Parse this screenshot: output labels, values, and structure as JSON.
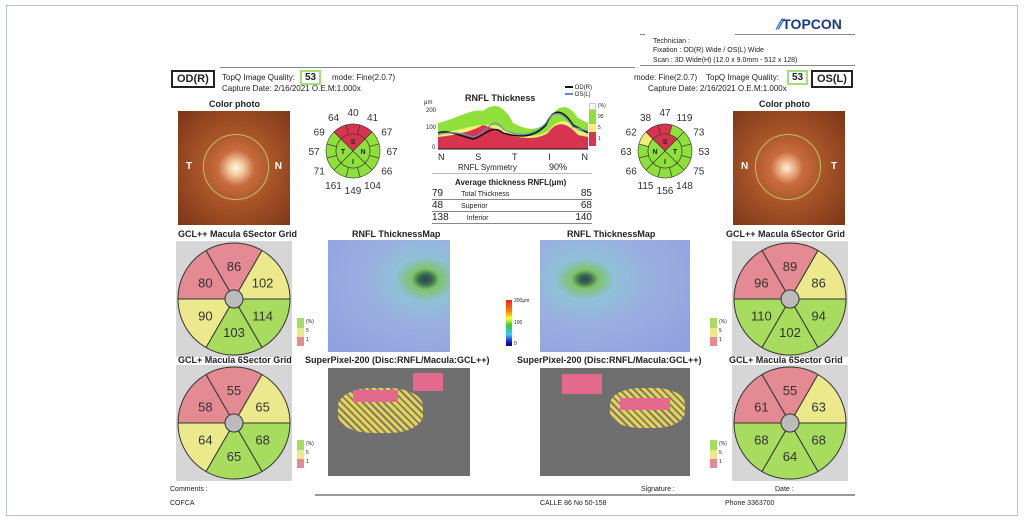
{
  "brand": "TOPCON",
  "header": {
    "technician": "Technician :",
    "fixation": "Fixation : OD(R) Wide / OS(L) Wide",
    "scan": "Scan : 3D Wide(H) (12.0 x 9.0mm - 512 x 128)"
  },
  "od": {
    "eye": "OD(R)",
    "quality_label": "TopQ Image Quality:",
    "quality": "53",
    "mode": "mode: Fine(2.0.7)",
    "capture": "Capture Date: 2/16/2021  O.E.M:1.000x",
    "photo_title": "Color photo",
    "photo_left": "T",
    "photo_right": "N",
    "clock": [
      "40",
      "41",
      "67",
      "67",
      "66",
      "104",
      "149",
      "161",
      "71",
      "57",
      "69",
      "64"
    ],
    "clock_colors": [
      "r",
      "r",
      "g",
      "g",
      "g",
      "g",
      "g",
      "g",
      "g",
      "g",
      "g",
      "r"
    ],
    "quad": [
      "S",
      "N",
      "I",
      "T"
    ],
    "quad_colors": [
      "r",
      "g",
      "g",
      "g"
    ],
    "gclpp": {
      "title": "GCL++ Macula 6Sector Grid",
      "sectors": [
        "86",
        "102",
        "114",
        "103",
        "90",
        "80"
      ],
      "colors": [
        "r",
        "y",
        "g",
        "g",
        "y",
        "r"
      ]
    },
    "gclp": {
      "title": "GCL+ Macula 6Sector Grid",
      "sectors": [
        "55",
        "65",
        "68",
        "65",
        "64",
        "58"
      ],
      "colors": [
        "r",
        "y",
        "g",
        "g",
        "y",
        "r"
      ]
    },
    "map_title": "RNFL ThicknessMap",
    "sp_title": "SuperPixel-200 (Disc:RNFL/Macula:GCL++)"
  },
  "os": {
    "eye": "OS(L)",
    "quality_label": "TopQ Image Quality:",
    "quality": "53",
    "mode": "mode: Fine(2.0.7)",
    "capture": "Capture Date: 2/16/2021  O.E.M:1.000x",
    "photo_title": "Color photo",
    "photo_left": "N",
    "photo_right": "T",
    "clock": [
      "47",
      "119",
      "73",
      "53",
      "75",
      "148",
      "156",
      "115",
      "66",
      "63",
      "62",
      "38"
    ],
    "clock_colors": [
      "r",
      "g",
      "g",
      "g",
      "g",
      "g",
      "g",
      "g",
      "g",
      "g",
      "y",
      "r"
    ],
    "quad": [
      "S",
      "T",
      "I",
      "N"
    ],
    "quad_colors": [
      "r",
      "g",
      "g",
      "g"
    ],
    "gclpp": {
      "title": "GCL++ Macula 6Sector Grid",
      "sectors": [
        "89",
        "86",
        "94",
        "102",
        "110",
        "96"
      ],
      "colors": [
        "r",
        "y",
        "g",
        "g",
        "g",
        "r"
      ]
    },
    "gclp": {
      "title": "GCL+ Macula 6Sector Grid",
      "sectors": [
        "55",
        "63",
        "68",
        "64",
        "68",
        "61"
      ],
      "colors": [
        "r",
        "y",
        "g",
        "g",
        "g",
        "r"
      ]
    },
    "map_title": "RNFL ThicknessMap",
    "sp_title": "SuperPixel-200 (Disc:RNFL/Macula:GCL++)"
  },
  "rnfl": {
    "title": "RNFL Thickness",
    "unit": "μm",
    "yticks": [
      "200",
      "100",
      "0"
    ],
    "xlabels": [
      "N",
      "S",
      "T",
      "I",
      "N"
    ],
    "legend_od": "OD(R)",
    "legend_os": "OS(L)",
    "pct": "(%)",
    "p95": "95",
    "p5": "5",
    "p1": "1",
    "symmetry_label": "RNFL Symmetry",
    "symmetry": "90%",
    "avg_title": "Average thickness RNFL(μm)",
    "rows": [
      {
        "od": "79",
        "label": "Total Thickness",
        "os": "85"
      },
      {
        "od": "48",
        "label": "Superior",
        "os": "68"
      },
      {
        "od": "138",
        "label": "Inferior",
        "os": "140"
      }
    ]
  },
  "legend": {
    "pct": "(%)",
    "p5": "5",
    "p1": "1"
  },
  "scale": {
    "max": "200μm",
    "mid": "100",
    "min": "0"
  },
  "colors": {
    "r": "#d9344f",
    "g": "#8fe03a",
    "y": "#f3ee78",
    "gr": "#e38a92",
    "gy": "#ece98c",
    "gg": "#a8dc5e"
  },
  "footer": {
    "comments": "Comments :",
    "signature": "Signature :",
    "date": "Date :",
    "org": "COFCA",
    "address": "CALLE 86 No 50-158",
    "phone": "Phone 3363700"
  }
}
